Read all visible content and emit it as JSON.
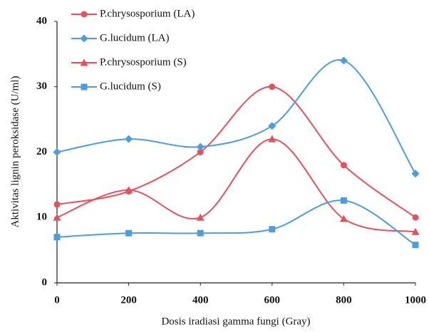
{
  "chart_data": {
    "type": "line",
    "x_label": "Dosis iradiasi gamma fungi (Gray)",
    "y_label": "Aktivitas lignin peroksidase  (U/ml)",
    "x": [
      0,
      200,
      400,
      600,
      800,
      1000
    ],
    "xlim": [
      0,
      1000
    ],
    "xticks": [
      0,
      200,
      400,
      600,
      800,
      1000
    ],
    "ylim": [
      0,
      40
    ],
    "yticks": [
      0,
      10,
      20,
      30,
      40
    ],
    "grid": false,
    "smooth": true,
    "legend": "top-left",
    "series": [
      {
        "name": "P.chrysosporium (LA)",
        "color": "#e8505b",
        "marker": "circle",
        "values": [
          12,
          14,
          20,
          30,
          18,
          10
        ]
      },
      {
        "name": "G.lucidum (LA)",
        "color": "#4a9ee0",
        "marker": "diamond",
        "values": [
          20,
          22,
          20.8,
          24,
          34,
          16.7
        ]
      },
      {
        "name": "P.chrysosporium (S)",
        "color": "#e8505b",
        "marker": "triangle",
        "values": [
          10,
          14.2,
          10,
          22,
          9.8,
          7.8
        ]
      },
      {
        "name": "G.lucidum (S)",
        "color": "#4a9ee0",
        "marker": "square",
        "values": [
          7,
          7.6,
          7.6,
          8.2,
          12.6,
          5.8
        ]
      }
    ]
  }
}
